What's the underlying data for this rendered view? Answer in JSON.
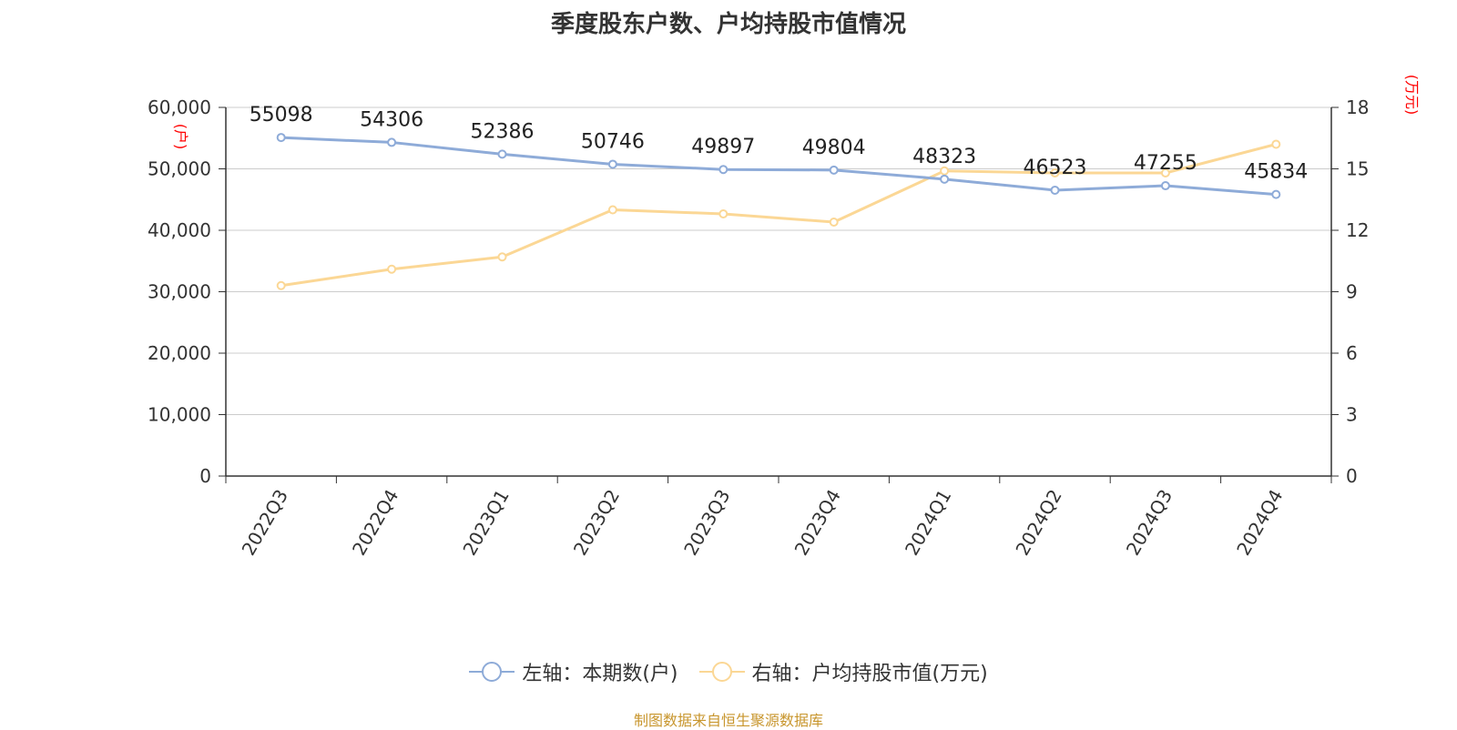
{
  "title": "季度股东户数、户均持股市值情况",
  "source": "制图数据来自恒生聚源数据库",
  "colors": {
    "left_series": "#8eabd8",
    "right_series": "#fbd795",
    "grid": "#cccccc",
    "axis": "#333333",
    "unit": "#ff0000",
    "source": "#c8962e"
  },
  "chart_data": {
    "type": "line",
    "categories": [
      "2022Q3",
      "2022Q4",
      "2023Q1",
      "2023Q2",
      "2023Q3",
      "2023Q4",
      "2024Q1",
      "2024Q2",
      "2024Q3",
      "2024Q4"
    ],
    "series": [
      {
        "name": "左轴：本期数(户)",
        "axis": "left",
        "values": [
          55098,
          54306,
          52386,
          50746,
          49897,
          49804,
          48323,
          46523,
          47255,
          45834
        ],
        "show_labels": true
      },
      {
        "name": "右轴：户均持股市值(万元)",
        "axis": "right",
        "values": [
          9.3,
          10.1,
          10.7,
          13.0,
          12.8,
          12.4,
          14.9,
          14.8,
          14.8,
          16.2
        ],
        "show_labels": false
      }
    ],
    "y_left": {
      "unit": "(户)",
      "range": [
        0,
        60000
      ],
      "ticks": [
        0,
        10000,
        20000,
        30000,
        40000,
        50000,
        60000
      ],
      "tick_labels": [
        "0",
        "10,000",
        "20,000",
        "30,000",
        "40,000",
        "50,000",
        "60,000"
      ]
    },
    "y_right": {
      "unit": "(万元)",
      "range": [
        0,
        18
      ],
      "ticks": [
        0,
        3,
        6,
        9,
        12,
        15,
        18
      ],
      "tick_labels": [
        "0",
        "3",
        "6",
        "9",
        "12",
        "15",
        "18"
      ]
    },
    "grid": true,
    "legend_position": "bottom"
  }
}
